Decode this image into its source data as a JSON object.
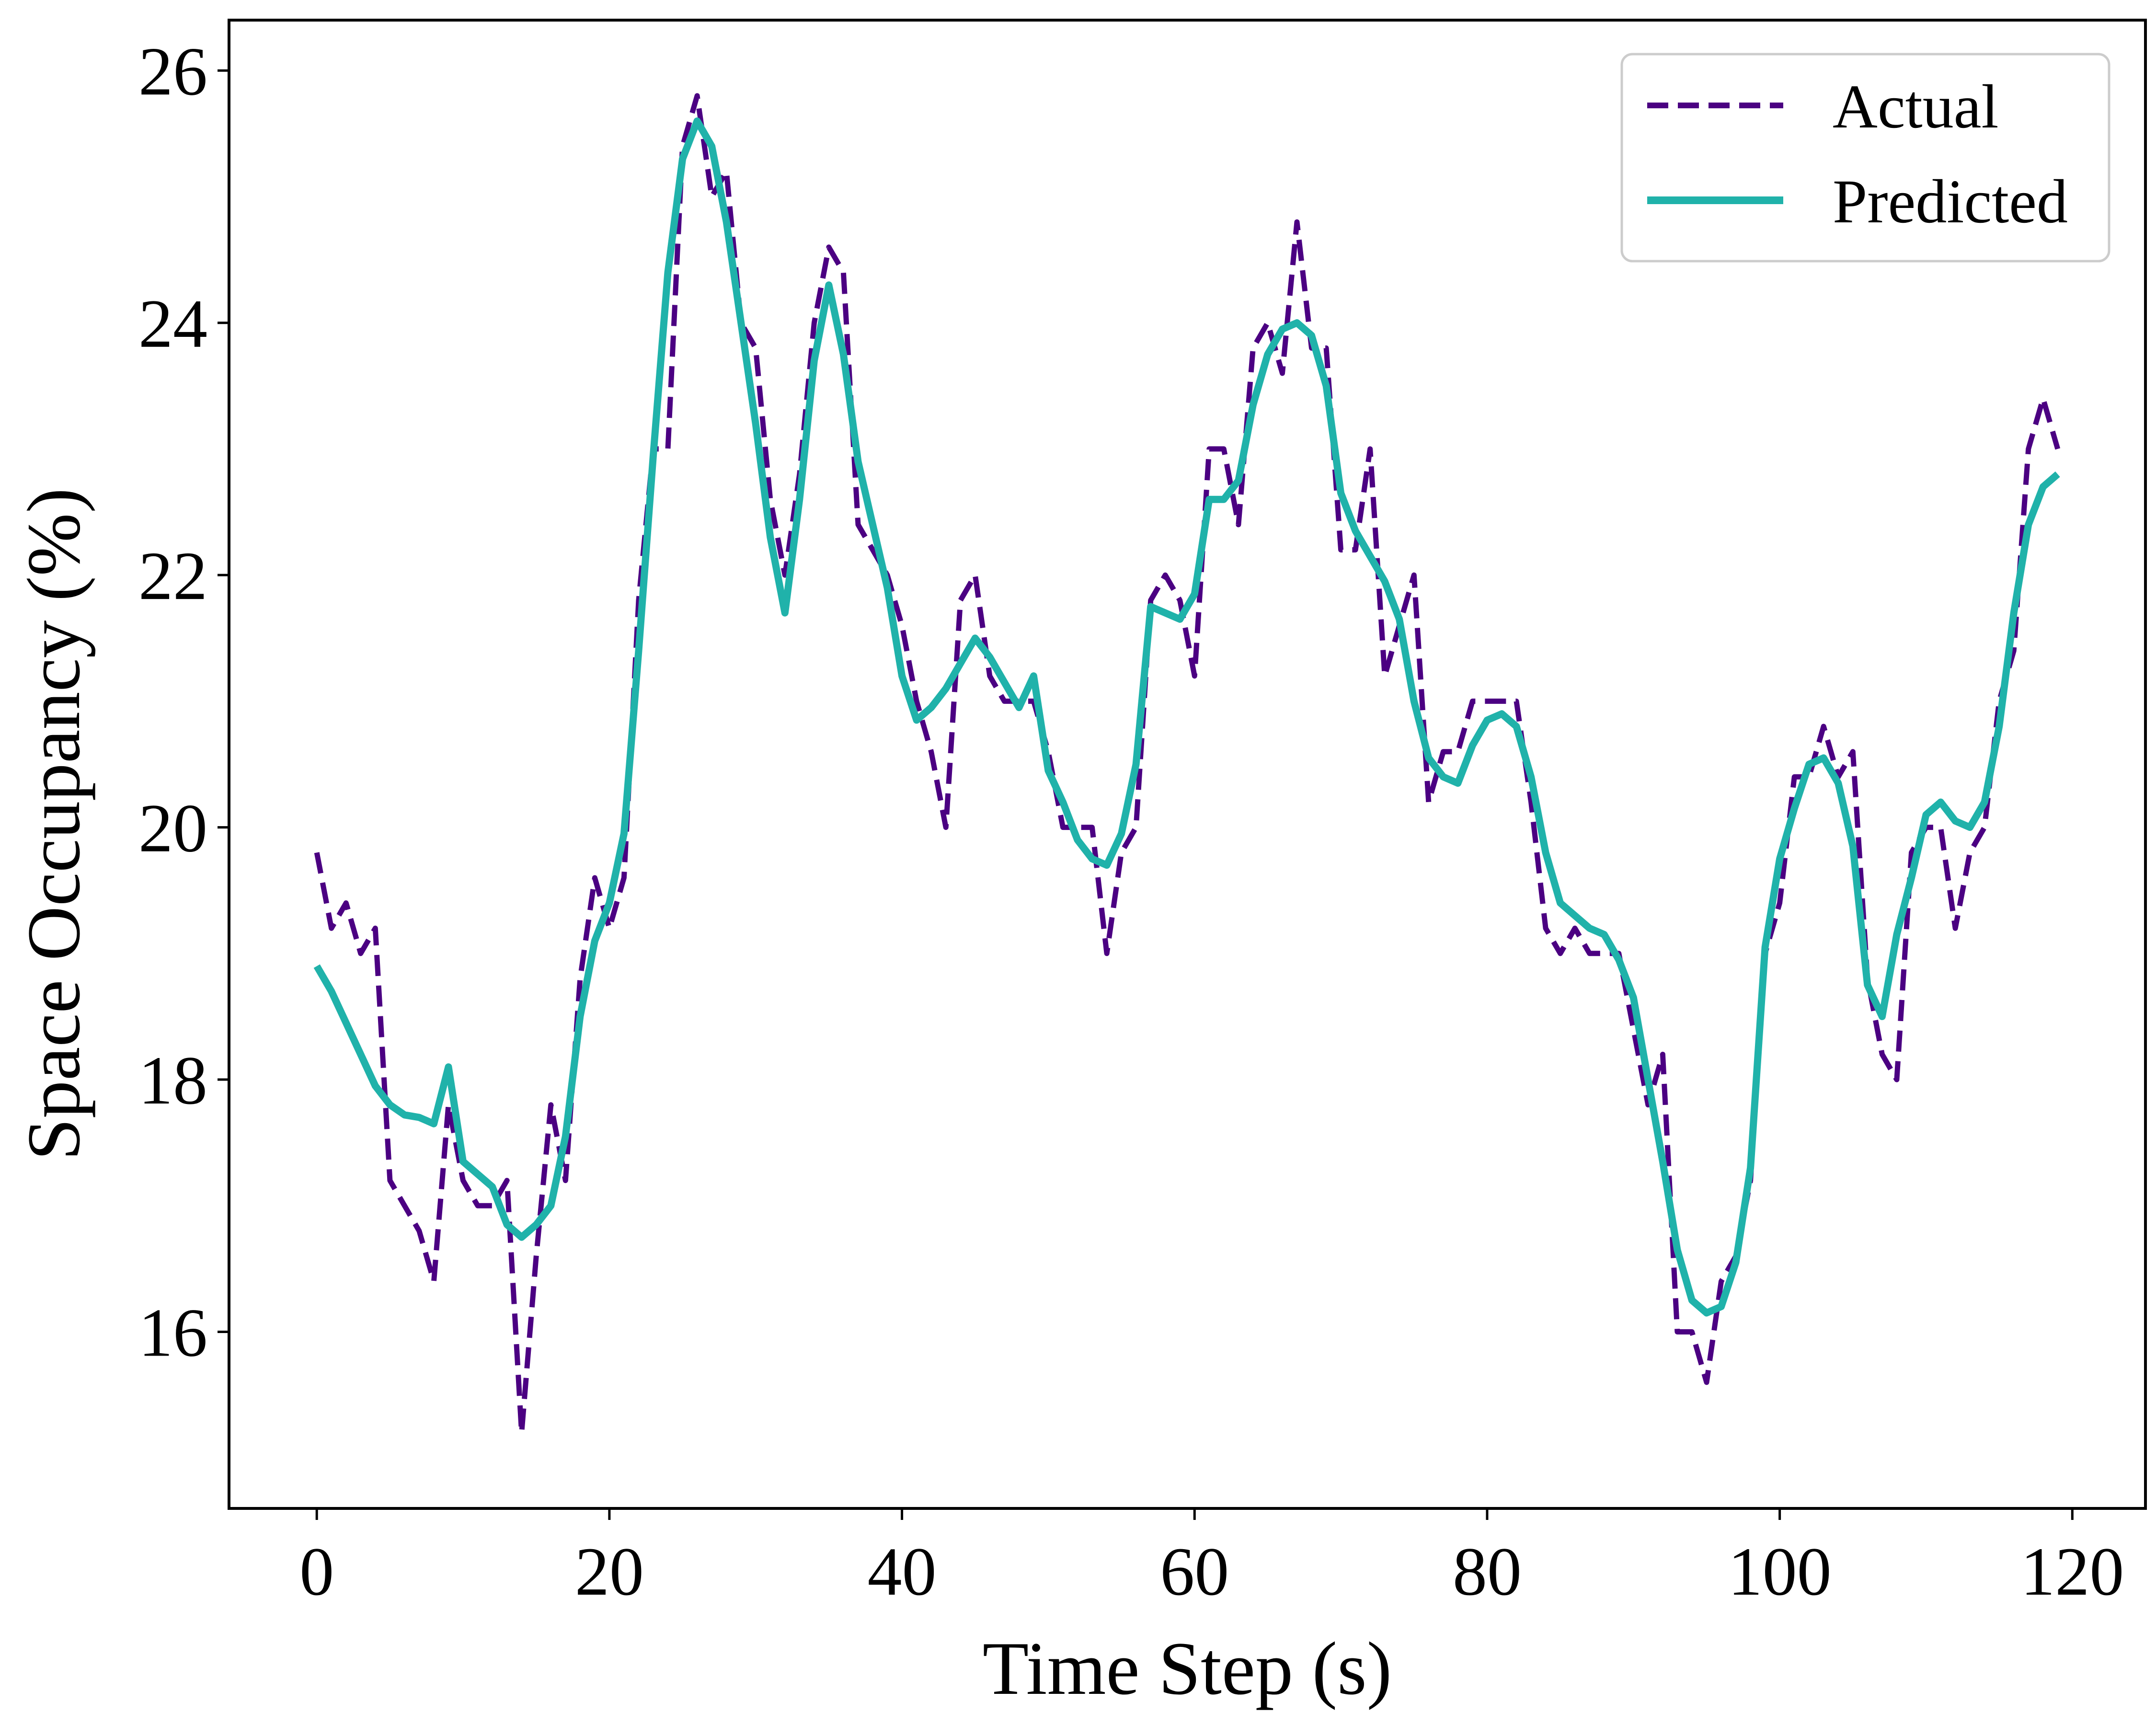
{
  "chart_data": {
    "type": "line",
    "title": "",
    "xlabel": "Time Step (s)",
    "ylabel": "Space Occupancy (%)",
    "xlim": [
      -6,
      125
    ],
    "ylim": [
      14.6,
      26.4
    ],
    "xticks": [
      0,
      20,
      40,
      60,
      80,
      100,
      120
    ],
    "yticks": [
      16,
      18,
      20,
      22,
      24,
      26
    ],
    "grid": false,
    "legend_position": "top-right",
    "series": [
      {
        "name": "Actual",
        "style": "dashed",
        "color": "#4b0082",
        "x": [
          0,
          1,
          2,
          3,
          4,
          5,
          6,
          7,
          8,
          9,
          10,
          11,
          12,
          13,
          14,
          15,
          16,
          17,
          18,
          19,
          20,
          21,
          22,
          23,
          24,
          25,
          26,
          27,
          28,
          29,
          30,
          31,
          32,
          33,
          34,
          35,
          36,
          37,
          38,
          39,
          40,
          41,
          42,
          43,
          44,
          45,
          46,
          47,
          48,
          49,
          50,
          51,
          52,
          53,
          54,
          55,
          56,
          57,
          58,
          59,
          60,
          61,
          62,
          63,
          64,
          65,
          66,
          67,
          68,
          69,
          70,
          71,
          72,
          73,
          74,
          75,
          76,
          77,
          78,
          79,
          80,
          81,
          82,
          83,
          84,
          85,
          86,
          87,
          88,
          89,
          90,
          91,
          92,
          93,
          94,
          95,
          96,
          97,
          98,
          99,
          100,
          101,
          102,
          103,
          104,
          105,
          106,
          107,
          108,
          109,
          110,
          111,
          112,
          113,
          114,
          115,
          116,
          117,
          118,
          119
        ],
        "y": [
          19.8,
          19.2,
          19.4,
          19.0,
          19.2,
          17.2,
          17.0,
          16.8,
          16.4,
          17.8,
          17.2,
          17.0,
          17.0,
          17.2,
          15.2,
          16.6,
          17.8,
          17.2,
          18.8,
          19.6,
          19.2,
          19.6,
          21.8,
          23.0,
          23.0,
          25.4,
          25.8,
          25.0,
          25.2,
          24.0,
          23.8,
          22.6,
          22.0,
          22.8,
          24.0,
          24.6,
          24.4,
          22.4,
          22.2,
          22.0,
          21.6,
          21.0,
          20.6,
          20.0,
          21.8,
          22.0,
          21.2,
          21.0,
          21.0,
          21.0,
          20.6,
          20.0,
          20.0,
          20.0,
          19.0,
          19.8,
          20.0,
          21.8,
          22.0,
          21.8,
          21.2,
          23.0,
          23.0,
          22.4,
          23.8,
          24.0,
          23.6,
          24.8,
          23.8,
          23.8,
          22.2,
          22.2,
          23.0,
          21.2,
          21.6,
          22.0,
          20.2,
          20.6,
          20.6,
          21.0,
          21.0,
          21.0,
          21.0,
          20.2,
          19.2,
          19.0,
          19.2,
          19.0,
          19.0,
          19.0,
          18.4,
          17.8,
          18.2,
          16.0,
          16.0,
          15.6,
          16.4,
          16.6,
          17.2,
          19.0,
          19.4,
          20.4,
          20.4,
          20.8,
          20.4,
          20.6,
          18.8,
          18.2,
          18.0,
          19.8,
          20.0,
          20.0,
          19.2,
          19.8,
          20.0,
          21.0,
          21.4,
          23.0,
          23.4,
          23.0
        ]
      },
      {
        "name": "Predicted",
        "style": "solid",
        "color": "#20b2aa",
        "x": [
          0,
          1,
          2,
          3,
          4,
          5,
          6,
          7,
          8,
          9,
          10,
          11,
          12,
          13,
          14,
          15,
          16,
          17,
          18,
          19,
          20,
          21,
          22,
          23,
          24,
          25,
          26,
          27,
          28,
          29,
          30,
          31,
          32,
          33,
          34,
          35,
          36,
          37,
          38,
          39,
          40,
          41,
          42,
          43,
          44,
          45,
          46,
          47,
          48,
          49,
          50,
          51,
          52,
          53,
          54,
          55,
          56,
          57,
          58,
          59,
          60,
          61,
          62,
          63,
          64,
          65,
          66,
          67,
          68,
          69,
          70,
          71,
          72,
          73,
          74,
          75,
          76,
          77,
          78,
          79,
          80,
          81,
          82,
          83,
          84,
          85,
          86,
          87,
          88,
          89,
          90,
          91,
          92,
          93,
          94,
          95,
          96,
          97,
          98,
          99,
          100,
          101,
          102,
          103,
          104,
          105,
          106,
          107,
          108,
          109,
          110,
          111,
          112,
          113,
          114,
          115,
          116,
          117,
          118,
          119
        ],
        "y": [
          18.9,
          18.7,
          18.45,
          18.2,
          17.95,
          17.8,
          17.72,
          17.7,
          17.65,
          18.1,
          17.35,
          17.25,
          17.15,
          16.85,
          16.75,
          16.85,
          17.0,
          17.55,
          18.5,
          19.1,
          19.4,
          19.95,
          21.4,
          22.95,
          24.4,
          25.3,
          25.6,
          25.4,
          24.8,
          24.0,
          23.2,
          22.3,
          21.7,
          22.6,
          23.7,
          24.3,
          23.75,
          22.9,
          22.4,
          21.9,
          21.2,
          20.85,
          20.95,
          21.1,
          21.3,
          21.5,
          21.35,
          21.15,
          20.95,
          21.2,
          20.45,
          20.2,
          19.9,
          19.75,
          19.7,
          19.95,
          20.5,
          21.75,
          21.7,
          21.65,
          21.85,
          22.6,
          22.6,
          22.75,
          23.35,
          23.75,
          23.95,
          24.0,
          23.9,
          23.5,
          22.65,
          22.35,
          22.15,
          21.95,
          21.65,
          21.0,
          20.55,
          20.4,
          20.35,
          20.65,
          20.85,
          20.9,
          20.8,
          20.4,
          19.8,
          19.4,
          19.3,
          19.2,
          19.15,
          18.95,
          18.65,
          18.0,
          17.35,
          16.65,
          16.25,
          16.15,
          16.2,
          16.55,
          17.3,
          19.05,
          19.75,
          20.15,
          20.5,
          20.55,
          20.35,
          19.85,
          18.75,
          18.5,
          19.15,
          19.6,
          20.1,
          20.2,
          20.05,
          20.0,
          20.2,
          20.8,
          21.7,
          22.4,
          22.7,
          22.8
        ]
      }
    ]
  }
}
